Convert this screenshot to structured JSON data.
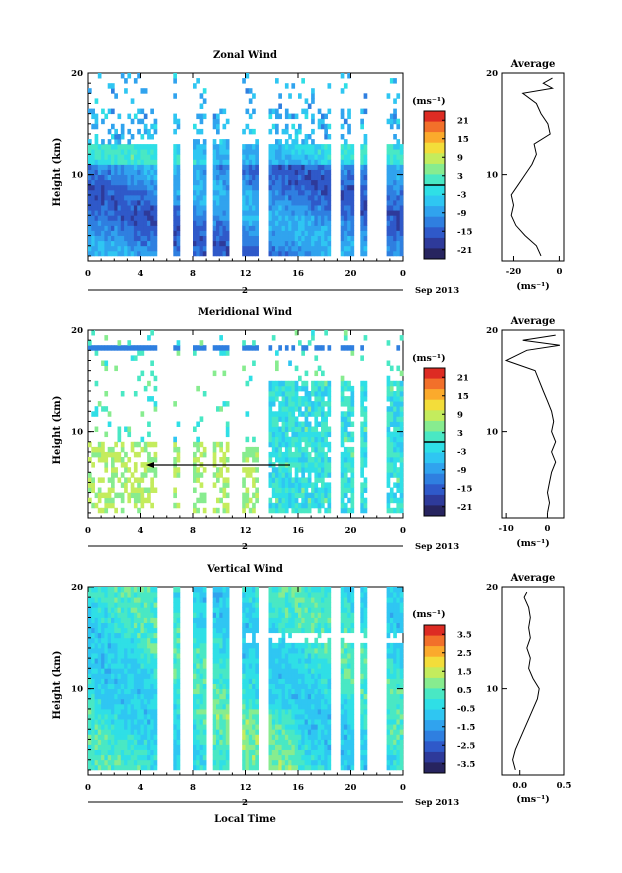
{
  "figure": {
    "date_label": "Sep 2013",
    "day_label": "2",
    "x_axis_title": "Local Time",
    "y_axis_title": "Height (km)",
    "avg_title": "Average",
    "units_label": "(ms⁻¹)"
  },
  "colors": {
    "scale": [
      "#27245f",
      "#2e3a9a",
      "#2f59c9",
      "#2f7fe0",
      "#30a3ee",
      "#2fc6f2",
      "#2fdfe6",
      "#49e8c4",
      "#87ec8f",
      "#c4ec5d",
      "#f3dd3a",
      "#fbaa2c",
      "#f2702a",
      "#dd2b23"
    ]
  },
  "chart_data": [
    {
      "type": "heatmap",
      "title": "Zonal Wind",
      "xlabel": "",
      "ylabel": "Height (km)",
      "xlim": [
        0,
        24
      ],
      "ylim": [
        1.5,
        20
      ],
      "x_ticks": [
        "0",
        "4",
        "8",
        "12",
        "16",
        "20",
        "0"
      ],
      "y_ticks": [
        "10",
        "20"
      ],
      "colorbar": {
        "ticks": [
          "21",
          "15",
          "9",
          "3",
          "-3",
          "-9",
          "-15",
          "-21"
        ],
        "range": [
          -24,
          24
        ],
        "contour_at": 0
      },
      "profile": {
        "title": "Average",
        "xlabel": "(ms⁻¹)",
        "x_ticks": [
          "-20",
          "0"
        ],
        "xlim": [
          -25,
          2
        ],
        "height": [
          2,
          3,
          4,
          5,
          6,
          7,
          8,
          9,
          10,
          11,
          12,
          13,
          14,
          15,
          16,
          17,
          18,
          18.5,
          19,
          19.5
        ],
        "value": [
          -8,
          -10,
          -15,
          -19,
          -21,
          -20,
          -21,
          -18,
          -15,
          -12,
          -10,
          -11,
          -4,
          -5,
          -8,
          -10,
          -16,
          -3,
          -7,
          -3
        ]
      }
    },
    {
      "type": "heatmap",
      "title": "Meridional Wind",
      "xlabel": "",
      "ylabel": "Height (km)",
      "xlim": [
        0,
        24
      ],
      "ylim": [
        1.5,
        20
      ],
      "x_ticks": [
        "0",
        "4",
        "8",
        "12",
        "16",
        "20",
        "0"
      ],
      "y_ticks": [
        "10",
        "20"
      ],
      "colorbar": {
        "ticks": [
          "21",
          "15",
          "9",
          "3",
          "-3",
          "-9",
          "-15",
          "-21"
        ],
        "range": [
          -24,
          24
        ],
        "contour_at": 0
      },
      "profile": {
        "title": "Average",
        "xlabel": "(ms⁻¹)",
        "x_ticks": [
          "-10",
          "0"
        ],
        "xlim": [
          -11,
          4
        ],
        "height": [
          2,
          3,
          4,
          5,
          6,
          7,
          8,
          9,
          10,
          11,
          12,
          13,
          14,
          15,
          16,
          17,
          18,
          18.5,
          19,
          19.5
        ],
        "value": [
          0,
          0.5,
          0,
          0.5,
          1,
          2,
          1,
          2,
          1,
          1.5,
          1,
          0,
          -1,
          -2,
          -3,
          -10,
          -5,
          3,
          -6,
          2
        ]
      }
    },
    {
      "type": "heatmap",
      "title": "Vertical Wind",
      "xlabel": "Local Time",
      "ylabel": "Height (km)",
      "xlim": [
        0,
        24
      ],
      "ylim": [
        1.5,
        20
      ],
      "x_ticks": [
        "0",
        "4",
        "8",
        "12",
        "16",
        "20",
        "0"
      ],
      "y_ticks": [
        "10",
        "20"
      ],
      "colorbar": {
        "ticks": [
          "3.5",
          "2.5",
          "1.5",
          "0.5",
          "-0.5",
          "-1.5",
          "-2.5",
          "-3.5"
        ],
        "range": [
          -4,
          4
        ],
        "contour_at": null
      },
      "profile": {
        "title": "Average",
        "xlabel": "(ms⁻¹)",
        "x_ticks": [
          "0.0",
          "0.5"
        ],
        "xlim": [
          -0.2,
          0.5
        ],
        "height": [
          2,
          3,
          4,
          5,
          6,
          7,
          8,
          9,
          10,
          11,
          12,
          13,
          14,
          15,
          16,
          17,
          18,
          19,
          19.5
        ],
        "value": [
          -0.05,
          -0.08,
          -0.05,
          0.0,
          0.05,
          0.1,
          0.15,
          0.2,
          0.22,
          0.15,
          0.1,
          0.12,
          0.08,
          0.12,
          0.1,
          0.12,
          0.1,
          0.05,
          0.08
        ]
      }
    }
  ]
}
